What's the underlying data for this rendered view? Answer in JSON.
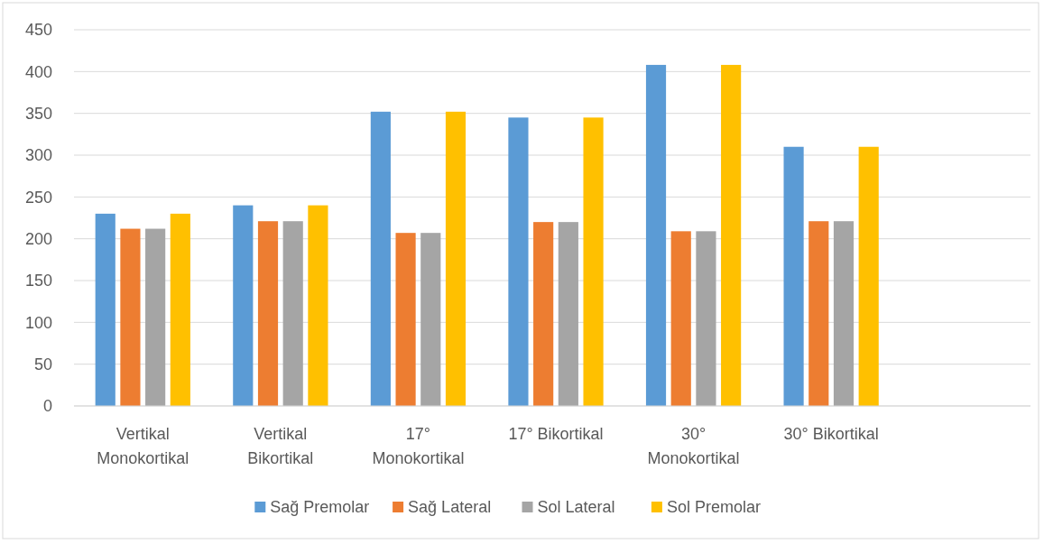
{
  "chart_data": {
    "type": "bar",
    "categories": [
      "Vertikal Monokortikal",
      "Vertikal Bikortikal",
      "17° Monokortikal",
      "17° Bikortikal",
      "30° Monokortikal",
      "30° Bikortikal",
      null
    ],
    "series": [
      {
        "name": "Sağ Premolar",
        "color": "#5b9bd5",
        "values": [
          230,
          240,
          352,
          345,
          408,
          310,
          null
        ]
      },
      {
        "name": "Sağ Lateral",
        "color": "#ed7d31",
        "values": [
          212,
          221,
          207,
          220,
          209,
          221,
          null
        ]
      },
      {
        "name": "Sol Lateral",
        "color": "#a5a5a5",
        "values": [
          212,
          221,
          207,
          220,
          209,
          221,
          null
        ]
      },
      {
        "name": "Sol Premolar",
        "color": "#ffc000",
        "values": [
          230,
          240,
          352,
          345,
          408,
          310,
          null
        ]
      }
    ],
    "ylim": [
      0,
      450
    ],
    "yticks": [
      0,
      50,
      100,
      150,
      200,
      250,
      300,
      350,
      400,
      450
    ],
    "grid": "y",
    "legend": "bottom"
  }
}
